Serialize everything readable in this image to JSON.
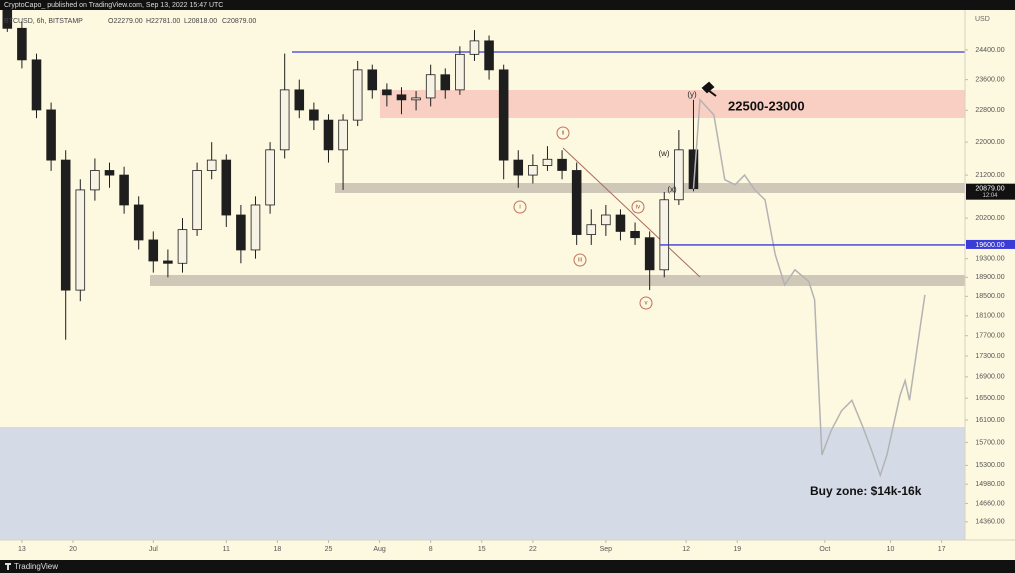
{
  "header": {
    "publisher": "CryptoCapo_ published on TradingView.com, Sep 13, 2022 15:47 UTC"
  },
  "footer": {
    "brand": "TradingView"
  },
  "chart_data": {
    "type": "candlestick",
    "symbol": "BTCUSD, 6h, BITSTAMP",
    "ohlc_legend": [
      "O22279.00",
      "H22781.00",
      "L20818.00",
      "C20879.00"
    ],
    "y_axis_unit": "USD",
    "log_scale": true,
    "xlim": [
      -3,
      129.2
    ],
    "ylim": [
      14070,
      25520
    ],
    "xticks": [
      {
        "value": 0,
        "label": "13"
      },
      {
        "value": 7,
        "label": "20"
      },
      {
        "value": 18,
        "label": "Jul"
      },
      {
        "value": 28,
        "label": "11"
      },
      {
        "value": 35,
        "label": "18"
      },
      {
        "value": 42,
        "label": "25"
      },
      {
        "value": 49,
        "label": "Aug"
      },
      {
        "value": 56,
        "label": "8"
      },
      {
        "value": 63,
        "label": "15"
      },
      {
        "value": 70,
        "label": "22"
      },
      {
        "value": 80,
        "label": "Sep"
      },
      {
        "value": 91,
        "label": "12"
      },
      {
        "value": 98,
        "label": "19"
      },
      {
        "value": 110,
        "label": "Oct"
      },
      {
        "value": 119,
        "label": "10"
      },
      {
        "value": 126,
        "label": "17"
      }
    ],
    "yticks": [
      {
        "value": 24400,
        "label": "24400.00"
      },
      {
        "value": 23600,
        "label": "23600.00"
      },
      {
        "value": 22800,
        "label": "22800.00"
      },
      {
        "value": 22000,
        "label": "22000.00"
      },
      {
        "value": 21200,
        "label": "21200.00"
      },
      {
        "value": 20200,
        "label": "20200.00"
      },
      {
        "value": 19300,
        "label": "19300.00"
      },
      {
        "value": 18900,
        "label": "18900.00"
      },
      {
        "value": 18500,
        "label": "18500.00"
      },
      {
        "value": 18100,
        "label": "18100.00"
      },
      {
        "value": 17700,
        "label": "17700.00"
      },
      {
        "value": 17300,
        "label": "17300.00"
      },
      {
        "value": 16900,
        "label": "16900.00"
      },
      {
        "value": 16500,
        "label": "16500.00"
      },
      {
        "value": 16100,
        "label": "16100.00"
      },
      {
        "value": 15700,
        "label": "15700.00"
      },
      {
        "value": 15300,
        "label": "15300.00"
      },
      {
        "value": 14980,
        "label": "14980.00"
      },
      {
        "value": 14660,
        "label": "14660.00"
      },
      {
        "value": 14360,
        "label": "14360.00"
      }
    ],
    "x": [
      -2,
      0,
      2,
      4,
      6,
      8,
      10,
      12,
      14,
      16,
      18,
      20,
      22,
      24,
      26,
      28,
      30,
      32,
      34,
      36,
      38,
      40,
      42,
      44,
      46,
      48,
      50,
      52,
      54,
      56,
      58,
      60,
      62,
      64,
      66,
      68,
      70,
      72,
      74,
      76,
      78,
      80,
      82,
      84,
      86,
      88,
      90,
      92
    ],
    "open": [
      25600,
      25000,
      24130,
      22810,
      21560,
      18630,
      20850,
      21310,
      21200,
      20500,
      19710,
      19250,
      19200,
      19940,
      21310,
      21560,
      20270,
      19490,
      20500,
      21810,
      23330,
      22810,
      22550,
      21810,
      22550,
      23860,
      23330,
      23200,
      23070,
      23120,
      23730,
      23330,
      24280,
      24650,
      23860,
      21560,
      21200,
      21430,
      21580,
      21310,
      19830,
      20050,
      20270,
      19900,
      19760,
      19060,
      20620,
      21810
    ],
    "high": [
      25700,
      25200,
      24300,
      23000,
      21800,
      21100,
      21600,
      21500,
      21400,
      20700,
      19900,
      19500,
      20200,
      21500,
      22000,
      21700,
      20500,
      20700,
      22000,
      24300,
      23600,
      23000,
      22700,
      22700,
      24100,
      24000,
      23500,
      23400,
      23300,
      24000,
      23900,
      24500,
      24950,
      24800,
      24000,
      21800,
      21700,
      21900,
      21800,
      21500,
      20400,
      20500,
      20400,
      20100,
      19900,
      20800,
      22300,
      23070
    ],
    "low": [
      24900,
      23900,
      22600,
      21300,
      17620,
      18400,
      20600,
      20900,
      20300,
      19500,
      19000,
      18900,
      19000,
      19800,
      21100,
      20000,
      19200,
      19300,
      20300,
      21600,
      22600,
      22300,
      21500,
      20850,
      22400,
      23100,
      22900,
      22700,
      22800,
      22900,
      23100,
      23200,
      24100,
      23600,
      21100,
      20900,
      21000,
      21300,
      21100,
      19600,
      19600,
      19800,
      19700,
      19600,
      18630,
      18900,
      20500,
      20818
    ],
    "close": [
      25000,
      24130,
      22810,
      21560,
      18630,
      20850,
      21310,
      21200,
      20500,
      19710,
      19250,
      19200,
      19940,
      21310,
      21560,
      20270,
      19490,
      20500,
      21810,
      23330,
      22810,
      22550,
      21810,
      22550,
      23860,
      23330,
      23200,
      23070,
      23120,
      23730,
      23330,
      24280,
      24650,
      23860,
      21560,
      21200,
      21430,
      21580,
      21310,
      19830,
      20050,
      20270,
      19900,
      19760,
      19060,
      20620,
      21810,
      20879
    ],
    "up_color": "#f6f2e4",
    "down_color": "#1e1e1e",
    "projection": {
      "color": "#b3b3b3",
      "x": [
        92,
        92.9,
        94.8,
        96.3,
        97.7,
        99.0,
        100.4,
        101.8,
        103.2,
        104.5,
        105.9,
        107.8,
        108.6,
        109.6,
        110.9,
        112.3,
        113.7,
        115.1,
        116.4,
        117.6,
        118.5,
        120.3,
        121.0,
        121.6,
        123.7
      ],
      "values": [
        20879,
        23070,
        22680,
        21090,
        20970,
        21200,
        20850,
        20620,
        19390,
        18740,
        19060,
        18810,
        18430,
        15480,
        15920,
        16270,
        16460,
        16010,
        15560,
        15130,
        15480,
        16550,
        16830,
        16460,
        18530
      ]
    },
    "price_markers": [
      {
        "value": 20879,
        "label": "20879.00",
        "countdown": "12:04",
        "color": "#111111"
      },
      {
        "value": 19600,
        "label": "19600.00",
        "color": "#3b3bd6"
      }
    ],
    "annotations": [
      "22500-23000",
      "Buy zone: $14k-16k"
    ],
    "wave_labels": [
      "i",
      "ii",
      "iii",
      "iv",
      "v",
      "(w)",
      "(x)",
      "(y)"
    ]
  }
}
